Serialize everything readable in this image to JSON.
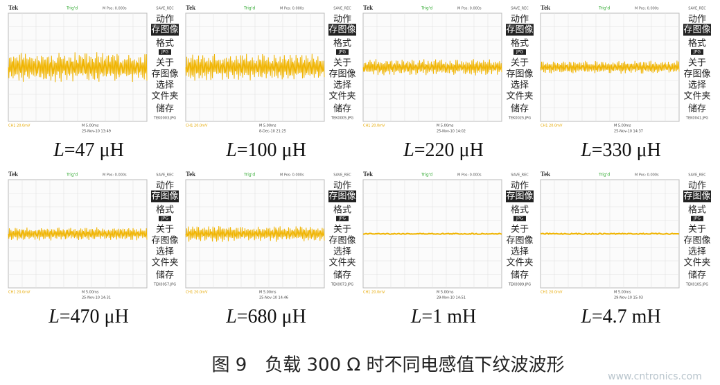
{
  "scope_ui": {
    "brand": "Tek",
    "trig": "Trig'd",
    "mpos": "M Pos: 0.000s",
    "save": "SAVE_REC",
    "menu": [
      "动作",
      "存图像",
      "格式",
      "JPG",
      "关于",
      "存图像",
      "选择",
      "文件夹",
      "储存"
    ],
    "ch1": "CH1  20.0mV",
    "timebase": "M 5.00ms"
  },
  "panels": [
    {
      "label": {
        "var": "L",
        "text": "=47 μH"
      },
      "date": "25-Nov-10 13:49",
      "file": "TEK0003.JPG"
    },
    {
      "label": {
        "var": "L",
        "text": "=100 μH"
      },
      "date": "8-Dec-10 21:25",
      "file": "TEK0005.JPG"
    },
    {
      "label": {
        "var": "L",
        "text": "=220 μH"
      },
      "date": "25-Nov-10 14:02",
      "file": "TEK0025.JPG"
    },
    {
      "label": {
        "var": "L",
        "text": "=330 μH"
      },
      "date": "25-Nov-10 14:37",
      "file": "TEK0041.JPG"
    },
    {
      "label": {
        "var": "L",
        "text": "=470 μH"
      },
      "date": "25-Nov-10 14:31",
      "file": "TEK0057.JPG"
    },
    {
      "label": {
        "var": "L",
        "text": "=680 μH"
      },
      "date": "25-Nov-10 14:46",
      "file": "TEK0073.JPG"
    },
    {
      "label": {
        "var": "L",
        "text": "=1 mH"
      },
      "date": "29-Nov-10 14:51",
      "file": "TEK0089.JPG"
    },
    {
      "label": {
        "var": "L",
        "text": "=4.7 mH"
      },
      "date": "29-Nov-10 15:03",
      "file": "TEK0105.JPG"
    }
  ],
  "caption": "图 9　负载 300 Ω 时不同电感值下纹波波形",
  "watermark": "www.cntronics.com"
}
